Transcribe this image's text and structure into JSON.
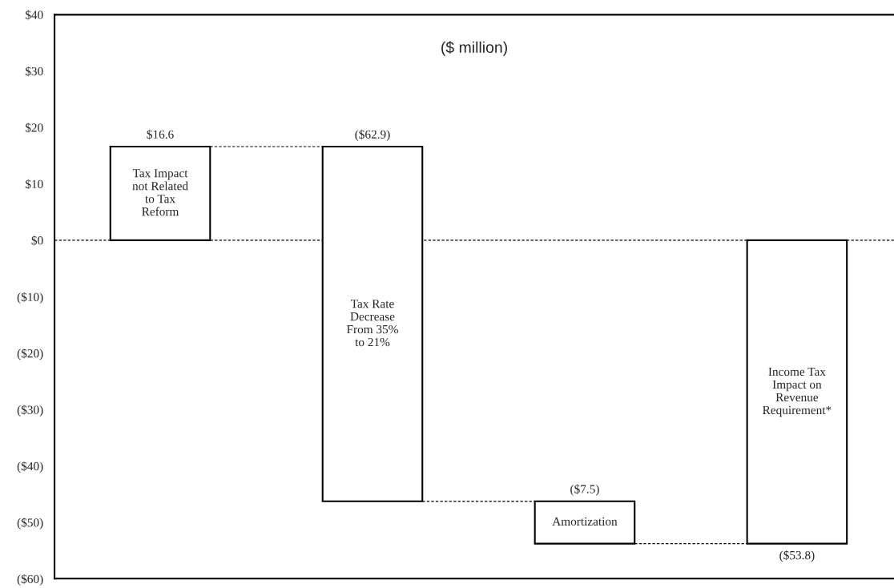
{
  "chart_data": {
    "type": "bar",
    "categories": [
      "Tax Impact\nnot Related\nto Tax\nReform",
      "Tax Rate\nDecrease\nFrom 35%\nto 21%",
      "Amortization",
      "Income Tax\nImpact on\nRevenue\nRequirement*"
    ],
    "values": [
      16.6,
      -62.9,
      -7.5,
      -53.8
    ],
    "base": [
      0,
      16.6,
      -46.3,
      0
    ],
    "colors": [
      "#ffffff",
      "#ffffff",
      "#ffffff",
      "#ffffff"
    ],
    "value_labels": [
      "$16.6",
      "($62.9)",
      "($7.5)",
      "($53.8)"
    ],
    "annotations": [
      "($ million)"
    ],
    "ylim": [
      -60,
      40
    ],
    "yticks": [
      {
        "value": -60,
        "label": "($60)"
      },
      {
        "value": -50,
        "label": "($50)"
      },
      {
        "value": -40,
        "label": "($40)"
      },
      {
        "value": -30,
        "label": "($30)"
      },
      {
        "value": -20,
        "label": "($20)"
      },
      {
        "value": -10,
        "label": "($10)"
      },
      {
        "value": 0,
        "label": "$0"
      },
      {
        "value": 10,
        "label": "$10"
      },
      {
        "value": 20,
        "label": "$20"
      },
      {
        "value": 30,
        "label": "$30"
      },
      {
        "value": 40,
        "label": "$40"
      }
    ],
    "ref_lines": [
      {
        "axis": "y",
        "value": 0,
        "color": "#000000",
        "line_style": "dashed"
      }
    ],
    "grid": false,
    "legend": false
  }
}
